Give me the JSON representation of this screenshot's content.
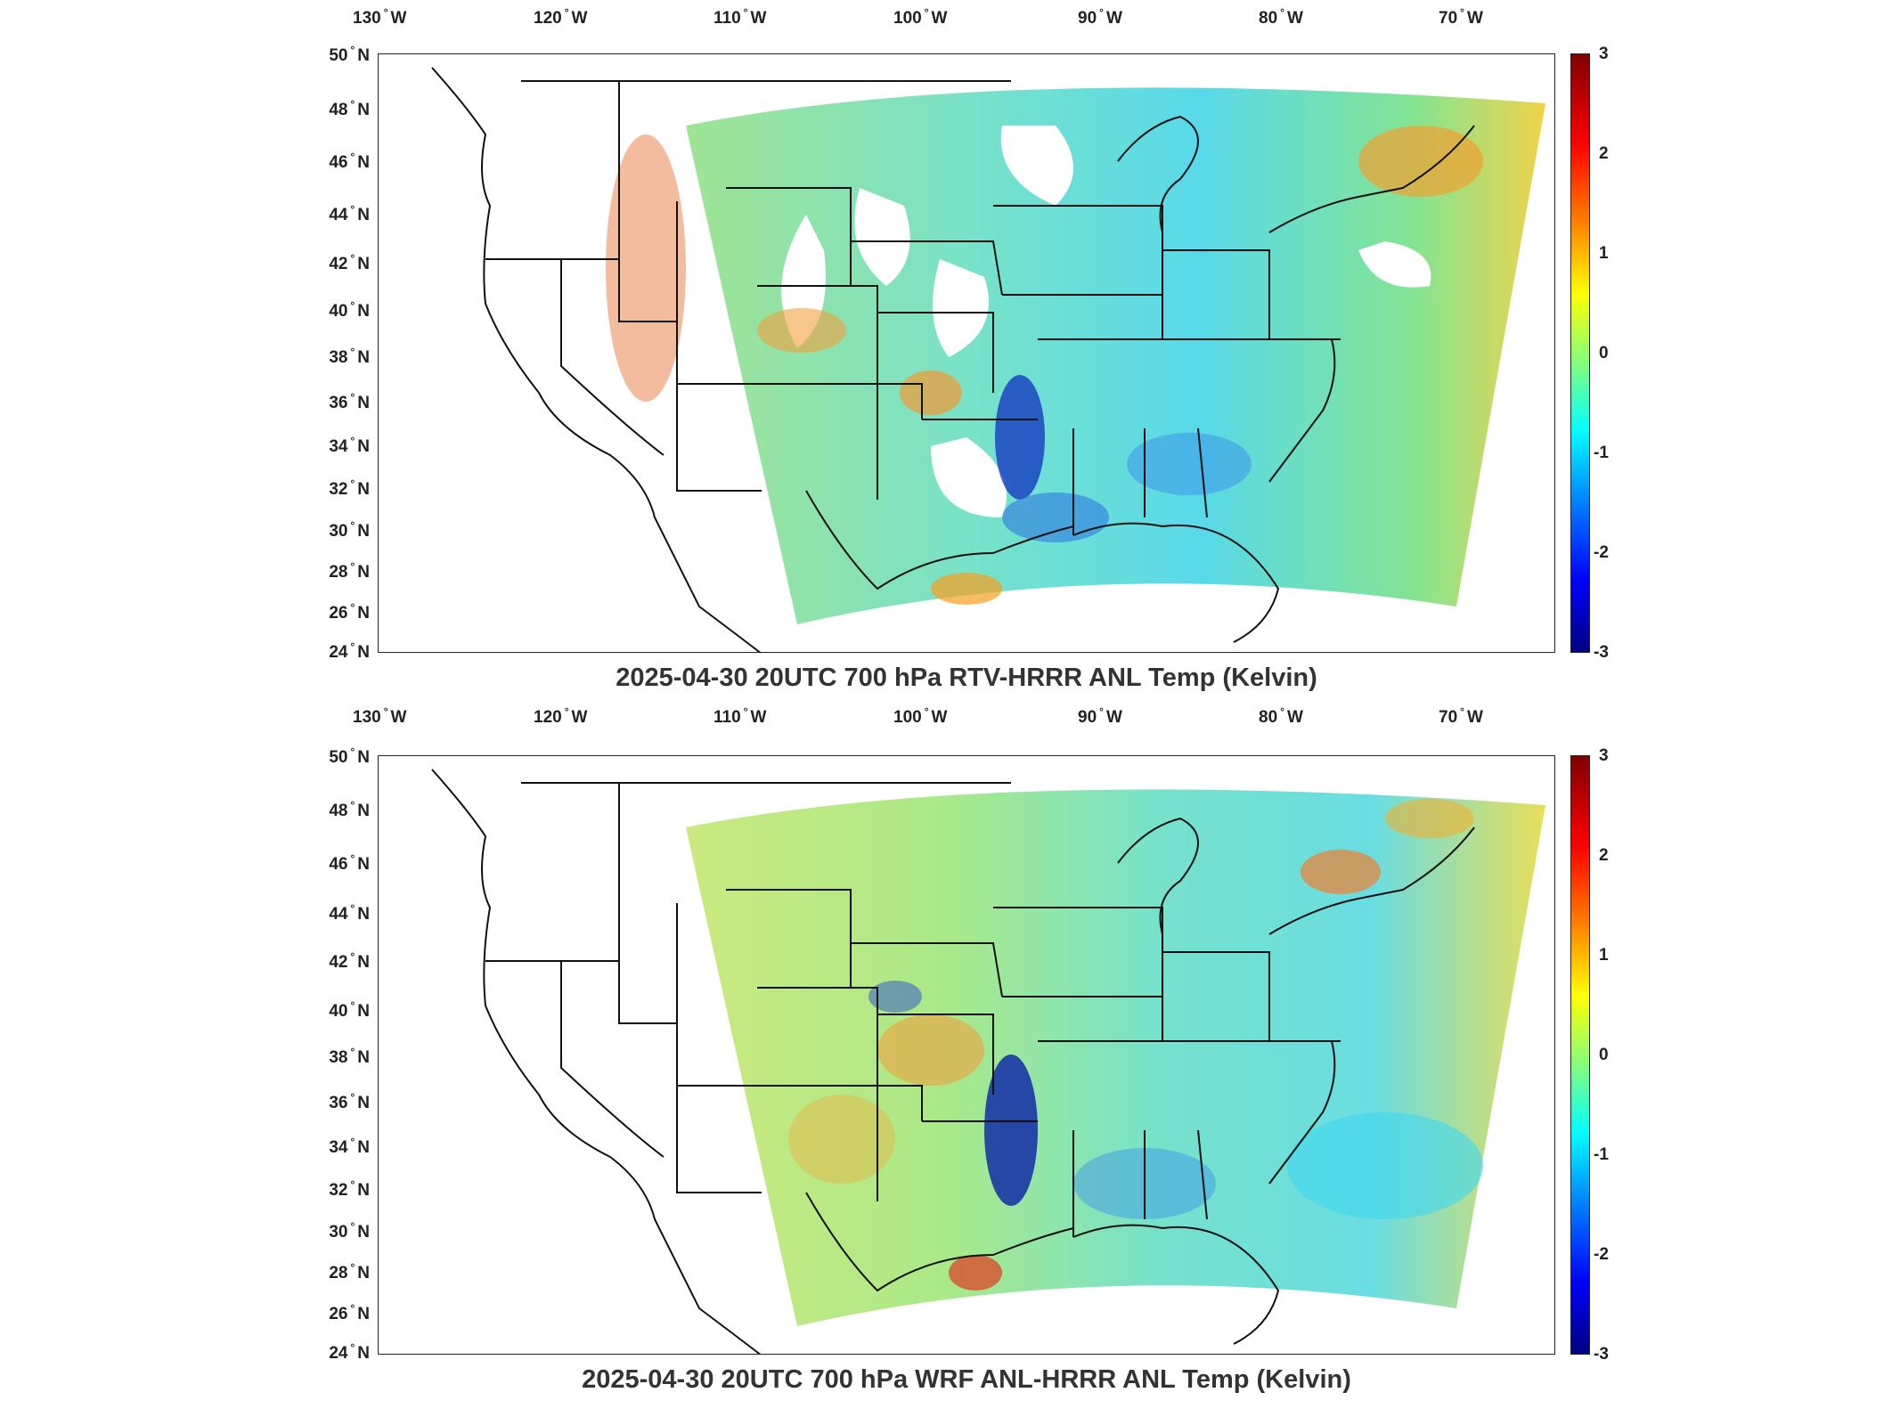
{
  "maps": [
    {
      "title": "2025-04-30 20UTC 700 hPa RTV-HRRR ANL Temp (Kelvin)",
      "top_axis": [
        "130",
        "120",
        "110",
        "100",
        "90",
        "80",
        "70"
      ],
      "lon_suffix": "W",
      "left_axis": [
        "50",
        "48",
        "46",
        "44",
        "42",
        "40",
        "38",
        "36",
        "34",
        "32",
        "30",
        "28",
        "26",
        "24"
      ],
      "lat_suffix": "N",
      "colorbar_ticks": [
        "3",
        "2",
        "1",
        "0",
        "-1",
        "-2",
        "-3"
      ],
      "colormap": "jet",
      "range": [
        -3,
        3
      ],
      "features": "includes white gaps (missing data) over west and central regions; red/blue speckles over Rockies; deep blue over Oklahoma/Texas border"
    },
    {
      "title": "2025-04-30 20UTC 700 hPa WRF ANL-HRRR ANL Temp (Kelvin)",
      "top_axis": [
        "130",
        "120",
        "110",
        "100",
        "90",
        "80",
        "70"
      ],
      "lon_suffix": "W",
      "left_axis": [
        "50",
        "48",
        "46",
        "44",
        "42",
        "40",
        "38",
        "36",
        "34",
        "32",
        "30",
        "28",
        "26",
        "24"
      ],
      "lat_suffix": "N",
      "colorbar_ticks": [
        "3",
        "2",
        "1",
        "0",
        "-1",
        "-2",
        "-3"
      ],
      "colormap": "jet",
      "range": [
        -3,
        3
      ],
      "features": "full coverage; deep blue band over Oklahoma/Texas border; warm anomalies over Kansas and Rockies"
    }
  ],
  "colors": {
    "dark_red": "#800000",
    "red": "#ff0000",
    "orange": "#ff7f00",
    "yellow": "#ffff00",
    "green": "#80ff80",
    "cyan": "#00ffff",
    "light_blue": "#0080ff",
    "blue": "#0000ff",
    "dark_blue": "#000080"
  }
}
